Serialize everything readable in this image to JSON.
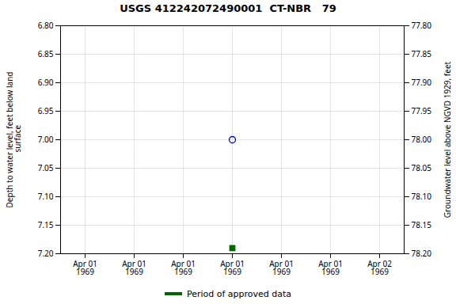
{
  "chart_data": {
    "type": "scatter",
    "title": "USGS 412242072490001  CT-NBR   79",
    "categories": [
      "Apr 01\n1969",
      "Apr 01\n1969",
      "Apr 01\n1969",
      "Apr 01\n1969",
      "Apr 01\n1969",
      "Apr 01\n1969",
      "Apr 02\n1969"
    ],
    "series": [
      {
        "color": "#0000cc",
        "marker": "circle",
        "values": [
          null,
          null,
          null,
          7.0,
          null,
          null,
          null
        ]
      },
      {
        "name": "Period of approved data",
        "color": "#006600",
        "marker": "square",
        "values": [
          null,
          null,
          null,
          7.19,
          null,
          null,
          null
        ]
      }
    ],
    "ylabel": "Depth to water level, feet below land\n surface",
    "y2label": "Groundwater level above NGVD 1929, feet",
    "ylim": [
      7.2,
      6.8
    ],
    "yticks": [
      {
        "value": 6.8,
        "label": "6.80"
      },
      {
        "value": 6.85,
        "label": "6.85"
      },
      {
        "value": 6.9,
        "label": "6.90"
      },
      {
        "value": 6.95,
        "label": "6.95"
      },
      {
        "value": 7.0,
        "label": "7.00"
      },
      {
        "value": 7.05,
        "label": "7.05"
      },
      {
        "value": 7.1,
        "label": "7.10"
      },
      {
        "value": 7.15,
        "label": "7.15"
      },
      {
        "value": 7.2,
        "label": "7.20"
      }
    ],
    "y2lim": [
      78.2,
      77.8
    ],
    "y2ticks": [
      {
        "value": 78.2,
        "label": "78.20"
      },
      {
        "value": 78.15,
        "label": "78.15"
      },
      {
        "value": 78.1,
        "label": "78.10"
      },
      {
        "value": 78.05,
        "label": "78.05"
      },
      {
        "value": 78.0,
        "label": "78.00"
      },
      {
        "value": 77.95,
        "label": "77.95"
      },
      {
        "value": 77.9,
        "label": "77.90"
      },
      {
        "value": 77.85,
        "label": "77.85"
      },
      {
        "value": 77.8,
        "label": "77.80"
      }
    ],
    "grid": true,
    "legend": "bottom"
  }
}
